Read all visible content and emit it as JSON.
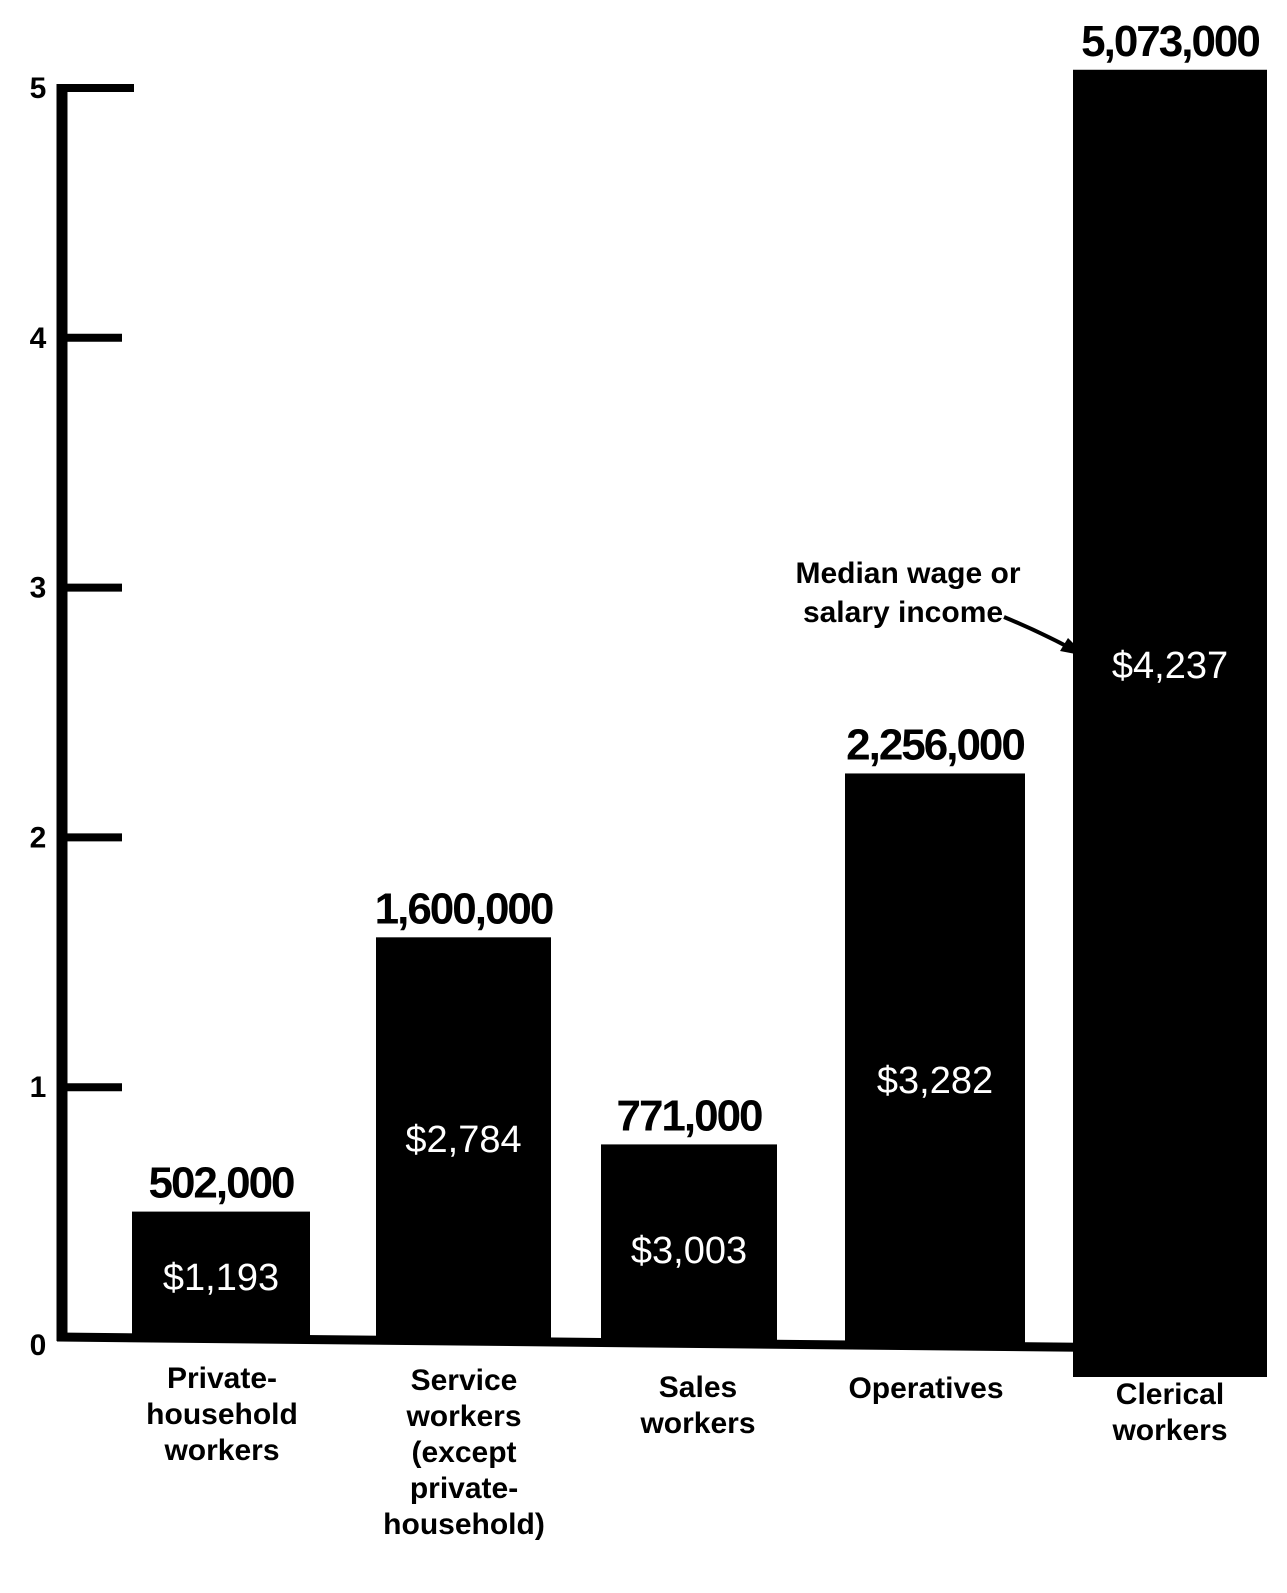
{
  "chart_data": {
    "type": "bar",
    "categories": [
      "Private-household workers",
      "Service workers (except private-household)",
      "Sales workers",
      "Operatives",
      "Clerical workers"
    ],
    "category_lines": [
      [
        "Private-",
        "household",
        "workers"
      ],
      [
        "Service",
        "workers",
        "(except",
        "private-",
        "household)"
      ],
      [
        "Sales",
        "workers"
      ],
      [
        "Operatives"
      ],
      [
        "Clerical",
        "workers"
      ]
    ],
    "values": [
      0.502,
      1.6,
      0.771,
      2.256,
      5.073
    ],
    "value_labels": [
      "502,000",
      "1,600,000",
      "771,000",
      "2,256,000",
      "5,073,000"
    ],
    "income_labels": [
      "$1,193",
      "$2,784",
      "$3,003",
      "$3,282",
      "$4,237"
    ],
    "ylim": [
      0,
      5
    ],
    "yticks": [
      "0",
      "1",
      "2",
      "3",
      "4",
      "5"
    ],
    "annotation": [
      "Median wage or",
      "salary income"
    ],
    "colors": {
      "bar": "#000000",
      "income_text": "#ffffff",
      "background": "#ffffff"
    },
    "grid": false,
    "legend": "none"
  }
}
